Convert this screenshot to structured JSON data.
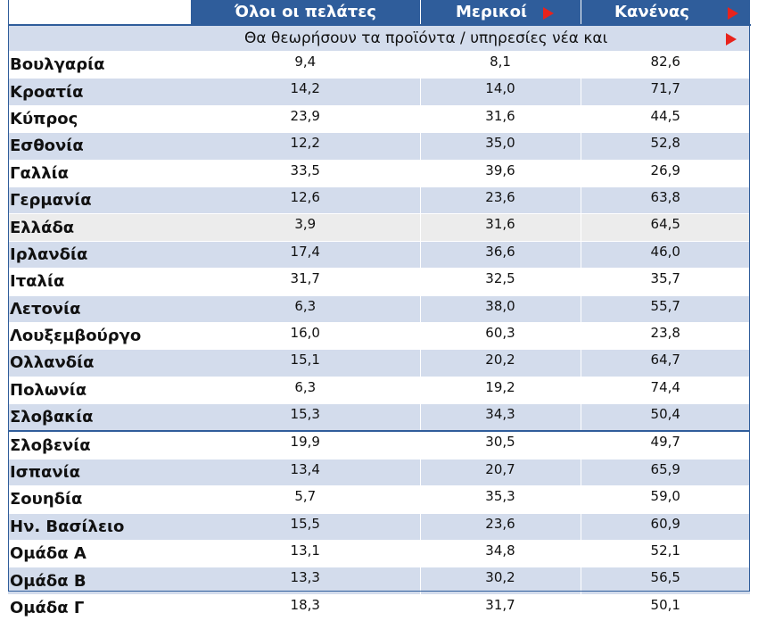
{
  "header": {
    "columns": [
      "Όλοι οι πελάτες",
      "Μερικοί",
      "Κανένας"
    ],
    "subheader": "Θα θεωρήσουν τα προϊόντα / υπηρεσίες νέα και"
  },
  "rows": [
    {
      "country": "Βουλγαρία",
      "all": "9,4",
      "some": "8,1",
      "none": "82,6"
    },
    {
      "country": "Κροατία",
      "all": "14,2",
      "some": "14,0",
      "none": "71,7"
    },
    {
      "country": "Κύπρος",
      "all": "23,9",
      "some": "31,6",
      "none": "44,5"
    },
    {
      "country": "Εσθονία",
      "all": "12,2",
      "some": "35,0",
      "none": "52,8"
    },
    {
      "country": "Γαλλία",
      "all": "33,5",
      "some": "39,6",
      "none": "26,9"
    },
    {
      "country": "Γερμανία",
      "all": "12,6",
      "some": "23,6",
      "none": "63,8"
    },
    {
      "country": "Ελλάδα",
      "all": "3,9",
      "some": "31,6",
      "none": "64,5"
    },
    {
      "country": "Ιρλανδία",
      "all": "17,4",
      "some": "36,6",
      "none": "46,0"
    },
    {
      "country": "Ιταλία",
      "all": "31,7",
      "some": "32,5",
      "none": "35,7"
    },
    {
      "country": "Λετονία",
      "all": "6,3",
      "some": "38,0",
      "none": "55,7"
    },
    {
      "country": "Λουξεμβούργο",
      "all": "16,0",
      "some": "60,3",
      "none": "23,8"
    },
    {
      "country": "Ολλανδία",
      "all": "15,1",
      "some": "20,2",
      "none": "64,7"
    },
    {
      "country": "Πολωνία",
      "all": "6,3",
      "some": "19,2",
      "none": "74,4"
    },
    {
      "country": "Σλοβακία",
      "all": "15,3",
      "some": "34,3",
      "none": "50,4"
    },
    {
      "country": "Σλοβενία",
      "all": "19,9",
      "some": "30,5",
      "none": "49,7"
    },
    {
      "country": "Ισπανία",
      "all": "13,4",
      "some": "20,7",
      "none": "65,9"
    },
    {
      "country": "Σουηδία",
      "all": "5,7",
      "some": "35,3",
      "none": "59,0"
    },
    {
      "country": "Ην. Βασίλειο",
      "all": "15,5",
      "some": "23,6",
      "none": "60,9"
    },
    {
      "country": "Ομάδα Α",
      "all": "13,1",
      "some": "34,8",
      "none": "52,1"
    },
    {
      "country": "Ομάδα Β",
      "all": "13,3",
      "some": "30,2",
      "none": "56,5"
    },
    {
      "country": "Ομάδα Γ",
      "all": "18,3",
      "some": "31,7",
      "none": "50,1"
    }
  ],
  "colors": {
    "header": "#2f5d9b",
    "band": "#d3dcec",
    "highlight": "#ececec",
    "marker": "#e8231c"
  }
}
